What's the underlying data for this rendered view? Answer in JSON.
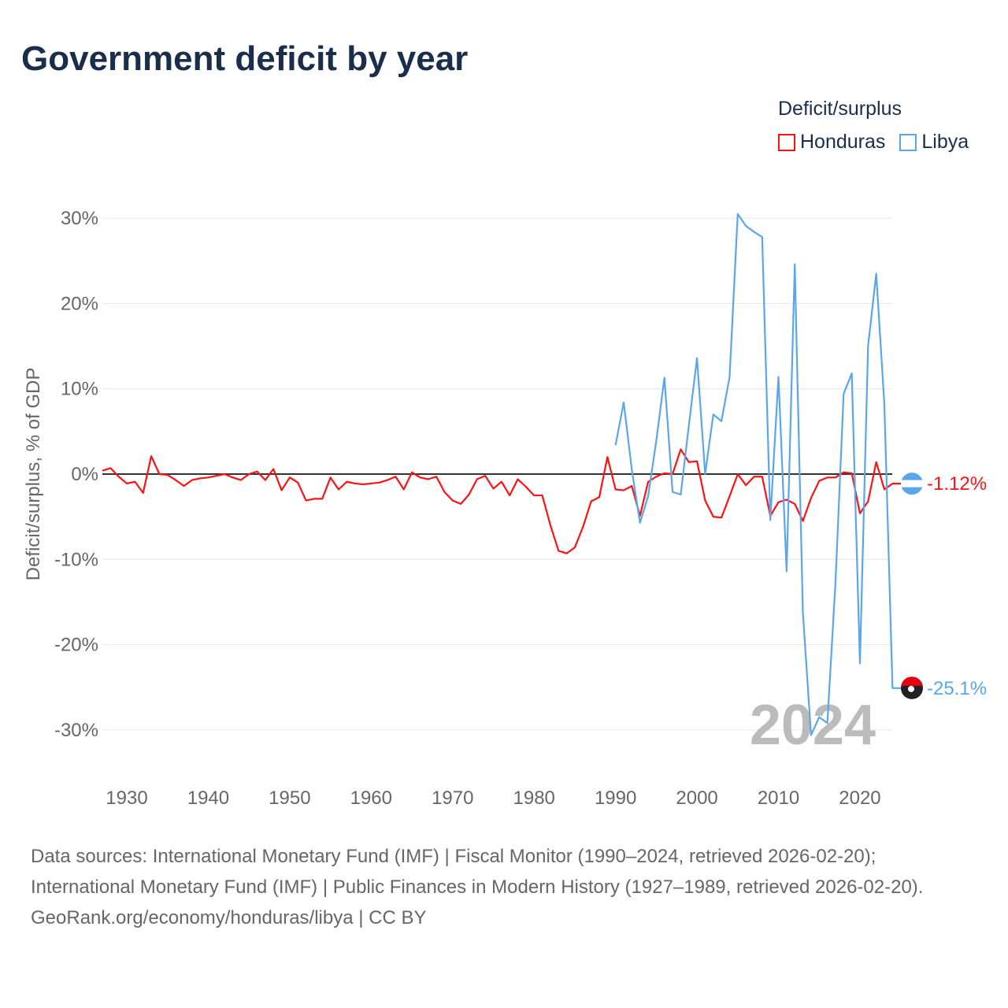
{
  "title": "Government deficit by year",
  "legend": {
    "title": "Deficit/surplus",
    "items": [
      {
        "name": "Honduras",
        "color": "#ff1111"
      },
      {
        "name": "Libya",
        "color": "#5aa6ee"
      }
    ]
  },
  "footer": {
    "sources": "Data sources: International Monetary Fund (IMF) | Fiscal Monitor (1990–2024, retrieved 2026-02-20); International Monetary Fund (IMF) | Public Finances in Modern History (1927–1989, retrieved 2026-02-20).",
    "link": "GeoRank.org/economy/honduras/libya | CC BY"
  },
  "chart_data": {
    "type": "line",
    "title": "Government deficit by year",
    "xlabel": "",
    "ylabel": "Deficit/surplus, % of GDP",
    "xlim": [
      1927,
      2024
    ],
    "ylim": [
      -35,
      32
    ],
    "yticks": [
      30,
      20,
      10,
      0,
      -10,
      -20,
      -30
    ],
    "ytick_labels": [
      "30%",
      "20%",
      "10%",
      "0%",
      "-10%",
      "-20%",
      "-30%"
    ],
    "xticks": [
      1930,
      1940,
      1950,
      1960,
      1970,
      1980,
      1990,
      2000,
      2010,
      2020
    ],
    "xtick_labels": [
      "1930",
      "1940",
      "1950",
      "1960",
      "1970",
      "1980",
      "1990",
      "2000",
      "2010",
      "2020"
    ],
    "year_watermark": "2024",
    "grid": true,
    "legend_position": "top-right",
    "series": [
      {
        "name": "Honduras",
        "color": "#ff1111",
        "end_label": "-1.12%",
        "start_year": 1927,
        "values": [
          0.4,
          0.7,
          -0.3,
          -1.1,
          -0.9,
          -2.2,
          2.1,
          0,
          -0.1,
          -0.7,
          -1.4,
          -0.7,
          -0.5,
          -0.4,
          -0.2,
          0,
          -0.4,
          -0.7,
          0,
          0.3,
          -0.7,
          0.6,
          -1.9,
          -0.4,
          -1.0,
          -3.1,
          -2.9,
          -2.9,
          -0.4,
          -1.8,
          -0.9,
          -1.1,
          -1.2,
          -1.1,
          -1.0,
          -0.7,
          -0.3,
          -1.8,
          0.2,
          -0.4,
          -0.6,
          -0.3,
          -2.1,
          -3.1,
          -3.5,
          -2.4,
          -0.6,
          -0.2,
          -1.7,
          -0.9,
          -2.5,
          -0.6,
          -1.5,
          -2.5,
          -2.5,
          -6.0,
          -9.0,
          -9.3,
          -8.6,
          -6.2,
          -3.2,
          -2.7,
          2.0,
          -1.8,
          -1.9,
          -1.4,
          -4.9,
          -0.9,
          -0.3,
          0.1,
          0,
          2.9,
          1.4,
          1.5,
          -3.1,
          -5.0,
          -5.1,
          -2.6,
          0,
          -1.3,
          -0.3,
          -0.3,
          -4.9,
          -3.3,
          -3.0,
          -3.5,
          -5.5,
          -2.8,
          -0.8,
          -0.4,
          -0.4,
          0.2,
          0.1,
          -4.6,
          -3.2,
          1.4,
          -1.8,
          -1.12
        ]
      },
      {
        "name": "Libya",
        "color": "#5aa6ee",
        "end_label": "-25.1%",
        "start_year": 1990,
        "values": [
          3.4,
          8.4,
          0.5,
          -5.7,
          -2.6,
          3.9,
          11.3,
          -2.1,
          -2.4,
          5.7,
          13.6,
          0,
          7.0,
          6.2,
          11.4,
          30.5,
          29.1,
          28.4,
          27.8,
          -5.4,
          11.4,
          -11.4,
          24.6,
          -16.3,
          -30.6,
          -28.5,
          -29.2,
          -12.7,
          9.4,
          11.8,
          -22.2,
          15.0,
          23.5,
          8.2,
          -25.1
        ]
      }
    ]
  }
}
